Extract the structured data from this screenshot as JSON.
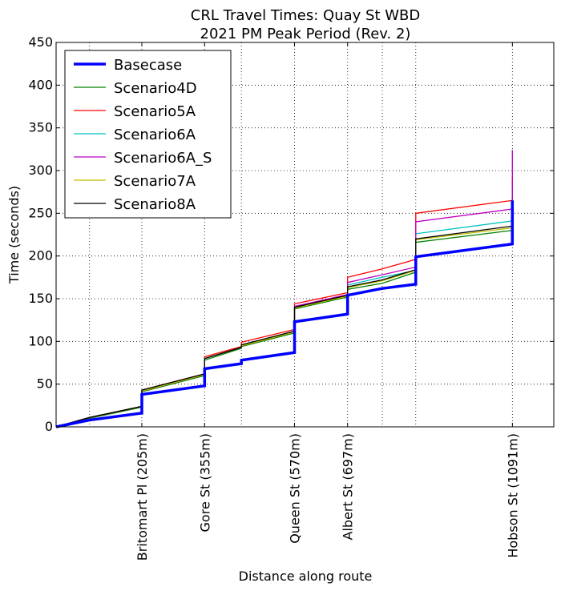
{
  "chart_data": {
    "type": "line",
    "title": "CRL Travel Times: Quay St WBD",
    "subtitle": "2021 PM Peak Period (Rev. 2)",
    "xlabel": "Distance along route",
    "ylabel": "Time (seconds)",
    "xlim": [
      0,
      1190
    ],
    "ylim": [
      0,
      450
    ],
    "yticks": [
      0,
      50,
      100,
      150,
      200,
      250,
      300,
      350,
      400,
      450
    ],
    "xticks": [
      {
        "x": 205,
        "label": "Britomart Pl (205m)"
      },
      {
        "x": 355,
        "label": "Gore St (355m)"
      },
      {
        "x": 570,
        "label": "Queen St (570m)"
      },
      {
        "x": 697,
        "label": "Albert St (697m)"
      },
      {
        "x": 1091,
        "label": "Hobson St (1091m)"
      }
    ],
    "grid": true,
    "grid_x": [
      80,
      205,
      355,
      443,
      570,
      697,
      780,
      860,
      1091
    ],
    "legend_position": "top-left",
    "series": [
      {
        "name": "Basecase",
        "color": "#0000ff",
        "width": 3.5,
        "points": [
          [
            0,
            0
          ],
          [
            80,
            8
          ],
          [
            205,
            16
          ],
          [
            205,
            38
          ],
          [
            355,
            48
          ],
          [
            355,
            68
          ],
          [
            443,
            74
          ],
          [
            443,
            78
          ],
          [
            570,
            87
          ],
          [
            570,
            123
          ],
          [
            697,
            132
          ],
          [
            697,
            154
          ],
          [
            780,
            162
          ],
          [
            860,
            167
          ],
          [
            860,
            199
          ],
          [
            1091,
            214
          ],
          [
            1091,
            265
          ]
        ]
      },
      {
        "name": "Scenario4D",
        "color": "#008000",
        "width": 1.3,
        "points": [
          [
            0,
            0
          ],
          [
            80,
            10
          ],
          [
            205,
            23
          ],
          [
            205,
            41
          ],
          [
            355,
            60
          ],
          [
            355,
            78
          ],
          [
            443,
            92
          ],
          [
            443,
            94
          ],
          [
            570,
            110
          ],
          [
            570,
            138
          ],
          [
            697,
            152
          ],
          [
            697,
            161
          ],
          [
            780,
            168
          ],
          [
            860,
            181
          ],
          [
            860,
            216
          ],
          [
            1091,
            230
          ],
          [
            1091,
            270
          ]
        ]
      },
      {
        "name": "Scenario5A",
        "color": "#ff0000",
        "width": 1.3,
        "points": [
          [
            0,
            0
          ],
          [
            80,
            11
          ],
          [
            205,
            24
          ],
          [
            205,
            43
          ],
          [
            355,
            62
          ],
          [
            355,
            82
          ],
          [
            443,
            94
          ],
          [
            443,
            99
          ],
          [
            570,
            114
          ],
          [
            570,
            144
          ],
          [
            697,
            157
          ],
          [
            697,
            175
          ],
          [
            780,
            185
          ],
          [
            860,
            196
          ],
          [
            860,
            250
          ],
          [
            1091,
            265
          ],
          [
            1091,
            292
          ]
        ]
      },
      {
        "name": "Scenario6A",
        "color": "#00bfbf",
        "width": 1.3,
        "points": [
          [
            0,
            0
          ],
          [
            80,
            11
          ],
          [
            205,
            24
          ],
          [
            205,
            42
          ],
          [
            355,
            61
          ],
          [
            355,
            80
          ],
          [
            443,
            93
          ],
          [
            443,
            96
          ],
          [
            570,
            111
          ],
          [
            570,
            140
          ],
          [
            697,
            154
          ],
          [
            697,
            166
          ],
          [
            780,
            175
          ],
          [
            860,
            183
          ],
          [
            860,
            226
          ],
          [
            1091,
            241
          ],
          [
            1091,
            283
          ]
        ]
      },
      {
        "name": "Scenario6A_S",
        "color": "#bf00bf",
        "width": 1.3,
        "points": [
          [
            0,
            0
          ],
          [
            80,
            11
          ],
          [
            205,
            24
          ],
          [
            205,
            42
          ],
          [
            355,
            61
          ],
          [
            355,
            80
          ],
          [
            443,
            93
          ],
          [
            443,
            96
          ],
          [
            570,
            111
          ],
          [
            570,
            141
          ],
          [
            697,
            155
          ],
          [
            697,
            169
          ],
          [
            780,
            178
          ],
          [
            860,
            187
          ],
          [
            860,
            240
          ],
          [
            1091,
            255
          ],
          [
            1091,
            324
          ]
        ]
      },
      {
        "name": "Scenario7A",
        "color": "#bfbf00",
        "width": 1.3,
        "points": [
          [
            0,
            0
          ],
          [
            80,
            11
          ],
          [
            205,
            24
          ],
          [
            205,
            42
          ],
          [
            355,
            61
          ],
          [
            355,
            80
          ],
          [
            443,
            93
          ],
          [
            443,
            95
          ],
          [
            570,
            111
          ],
          [
            570,
            139
          ],
          [
            697,
            153
          ],
          [
            697,
            163
          ],
          [
            780,
            171
          ],
          [
            860,
            183
          ],
          [
            860,
            219
          ],
          [
            1091,
            233
          ],
          [
            1091,
            265
          ]
        ]
      },
      {
        "name": "Scenario8A",
        "color": "#000000",
        "width": 1.3,
        "points": [
          [
            0,
            0
          ],
          [
            80,
            11
          ],
          [
            205,
            24
          ],
          [
            205,
            43
          ],
          [
            355,
            62
          ],
          [
            355,
            80
          ],
          [
            443,
            93
          ],
          [
            443,
            96
          ],
          [
            570,
            112
          ],
          [
            570,
            140
          ],
          [
            697,
            154
          ],
          [
            697,
            164
          ],
          [
            780,
            172
          ],
          [
            860,
            184
          ],
          [
            860,
            220
          ],
          [
            1091,
            235
          ],
          [
            1091,
            262
          ]
        ]
      }
    ]
  }
}
